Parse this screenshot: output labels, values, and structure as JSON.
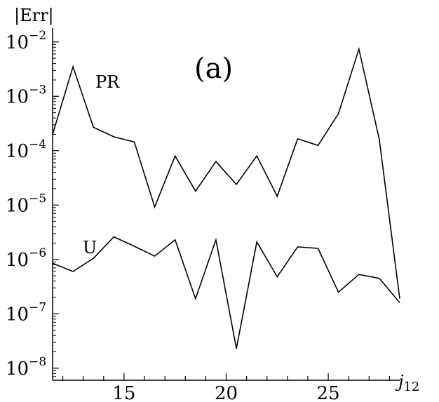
{
  "chart_data": {
    "type": "line",
    "panel_label": "(a)",
    "ylabel": "|Err|",
    "xlabel": "j12",
    "xlabel_parts": {
      "main": "j",
      "sub": "12"
    },
    "x_ticks": [
      15,
      20,
      25
    ],
    "y_ticks": [
      {
        "base": "10",
        "exp": "−2"
      },
      {
        "base": "10",
        "exp": "−3"
      },
      {
        "base": "10",
        "exp": "−4"
      },
      {
        "base": "10",
        "exp": "−5"
      },
      {
        "base": "10",
        "exp": "−6"
      },
      {
        "base": "10",
        "exp": "−7"
      },
      {
        "base": "10",
        "exp": "−8"
      }
    ],
    "y_scale": "log",
    "xlim": [
      11.5,
      28.5
    ],
    "ylim": [
      6e-09,
      0.018
    ],
    "series": [
      {
        "name": "PR",
        "x": [
          11.5,
          12.5,
          13.5,
          14.5,
          15.5,
          16.5,
          17.5,
          18.5,
          19.5,
          20.5,
          21.5,
          22.5,
          23.5,
          24.5,
          25.5,
          26.5,
          27.5,
          28.5
        ],
        "values": [
          0.0002,
          0.0035,
          0.00027,
          0.00018,
          0.000145,
          9.2e-06,
          8e-05,
          1.8e-05,
          6.3e-05,
          2.4e-05,
          8e-05,
          1.45e-05,
          0.000165,
          0.000125,
          0.00048,
          0.0074,
          0.00016,
          1.9e-07
        ]
      },
      {
        "name": "U",
        "x": [
          11.5,
          12.5,
          13.5,
          14.5,
          15.5,
          16.5,
          17.5,
          18.5,
          19.5,
          20.5,
          21.5,
          22.5,
          23.5,
          24.5,
          25.5,
          26.5,
          27.5,
          28.5
        ],
        "values": [
          8.5e-07,
          6e-07,
          1.05e-06,
          2.6e-06,
          1.75e-06,
          1.15e-06,
          2.3e-06,
          1.9e-07,
          2.3e-06,
          2.3e-08,
          2.1e-06,
          4.8e-07,
          1.7e-06,
          1.6e-06,
          2.5e-07,
          5.3e-07,
          4.5e-07,
          1.6e-07
        ]
      }
    ]
  }
}
